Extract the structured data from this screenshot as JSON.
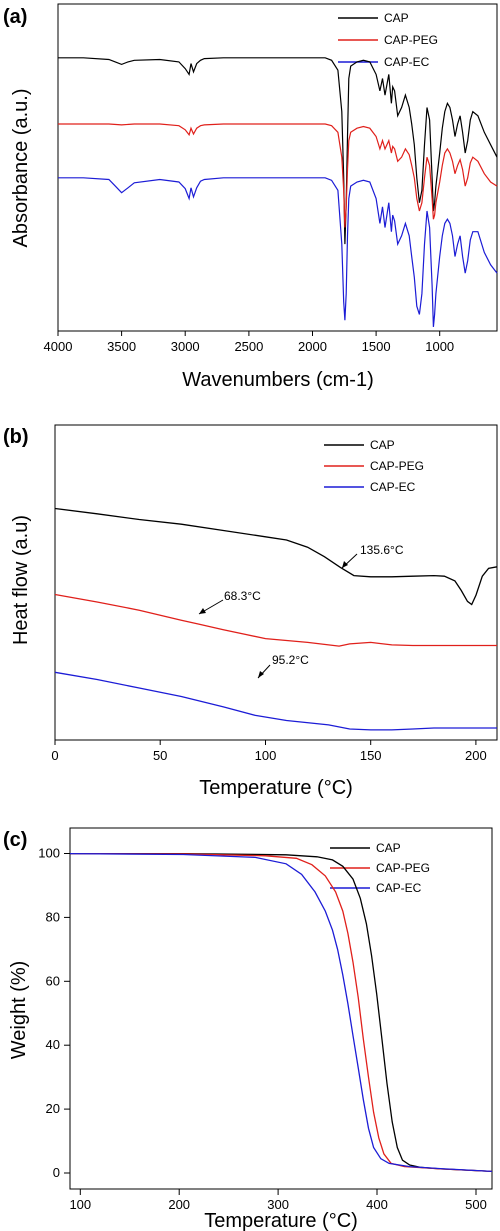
{
  "chart_data": [
    {
      "panel_label": "(a)",
      "type": "line",
      "xlabel": "Wavenumbers (cm-1)",
      "ylabel": "Absorbance (a.u.)",
      "xlim": [
        4000,
        550
      ],
      "xticks": [
        4000,
        3500,
        3000,
        2500,
        2000,
        1500,
        1000
      ],
      "ylim": [
        -0.75,
        3.2
      ],
      "y_ticks_shown": false,
      "grid": false,
      "legend_position": "top-right",
      "series": [
        {
          "name": "CAP",
          "color": "#000000",
          "x": [
            4000,
            3800,
            3600,
            3550,
            3500,
            3450,
            3400,
            3200,
            3050,
            3000,
            2970,
            2955,
            2935,
            2910,
            2880,
            2850,
            2700,
            2400,
            2100,
            1900,
            1850,
            1800,
            1770,
            1755,
            1745,
            1735,
            1725,
            1715,
            1700,
            1650,
            1600,
            1550,
            1500,
            1470,
            1450,
            1430,
            1400,
            1380,
            1370,
            1355,
            1330,
            1300,
            1270,
            1240,
            1220,
            1200,
            1180,
            1160,
            1140,
            1120,
            1100,
            1080,
            1060,
            1050,
            1040,
            1030,
            1000,
            980,
            960,
            940,
            920,
            900,
            880,
            860,
            840,
            820,
            800,
            780,
            760,
            740,
            700,
            650,
            600,
            550
          ],
          "y": [
            2.55,
            2.55,
            2.53,
            2.5,
            2.47,
            2.5,
            2.52,
            2.53,
            2.5,
            2.42,
            2.35,
            2.48,
            2.38,
            2.48,
            2.52,
            2.54,
            2.55,
            2.55,
            2.55,
            2.55,
            2.52,
            2.4,
            1.9,
            1.1,
            0.3,
            0.8,
            1.6,
            2.3,
            2.45,
            2.5,
            2.52,
            2.5,
            2.35,
            2.15,
            2.3,
            2.1,
            2.35,
            2.0,
            2.2,
            2.15,
            1.85,
            1.95,
            2.1,
            1.95,
            1.75,
            1.5,
            1.1,
            0.8,
            0.95,
            1.5,
            1.95,
            1.8,
            1.1,
            0.7,
            0.8,
            1.0,
            1.4,
            1.7,
            1.9,
            2.0,
            1.95,
            1.8,
            1.6,
            1.75,
            1.85,
            1.65,
            1.4,
            1.55,
            1.8,
            1.9,
            1.85,
            1.65,
            1.5,
            1.35
          ]
        },
        {
          "name": "CAP-PEG",
          "color": "#e0201b",
          "x": [
            4000,
            3800,
            3600,
            3500,
            3400,
            3200,
            3050,
            3000,
            2970,
            2955,
            2935,
            2910,
            2880,
            2850,
            2700,
            2400,
            2100,
            1900,
            1850,
            1800,
            1770,
            1755,
            1745,
            1735,
            1725,
            1715,
            1700,
            1650,
            1600,
            1550,
            1500,
            1470,
            1450,
            1430,
            1400,
            1380,
            1370,
            1355,
            1330,
            1300,
            1270,
            1240,
            1220,
            1200,
            1180,
            1160,
            1140,
            1120,
            1100,
            1080,
            1060,
            1050,
            1040,
            1030,
            1000,
            980,
            960,
            940,
            920,
            900,
            880,
            860,
            840,
            820,
            800,
            780,
            760,
            740,
            700,
            650,
            600,
            550
          ],
          "y": [
            1.75,
            1.75,
            1.75,
            1.74,
            1.75,
            1.75,
            1.73,
            1.68,
            1.62,
            1.7,
            1.63,
            1.7,
            1.73,
            1.74,
            1.75,
            1.75,
            1.75,
            1.75,
            1.73,
            1.65,
            1.35,
            0.95,
            0.5,
            0.75,
            1.2,
            1.55,
            1.65,
            1.7,
            1.72,
            1.7,
            1.6,
            1.45,
            1.55,
            1.45,
            1.55,
            1.4,
            1.48,
            1.45,
            1.3,
            1.35,
            1.45,
            1.38,
            1.25,
            1.1,
            0.85,
            0.7,
            0.8,
            1.1,
            1.35,
            1.25,
            0.85,
            0.6,
            0.65,
            0.8,
            1.05,
            1.25,
            1.4,
            1.45,
            1.4,
            1.3,
            1.15,
            1.25,
            1.32,
            1.2,
            1.0,
            1.1,
            1.28,
            1.35,
            1.3,
            1.15,
            1.05,
            1.0
          ]
        },
        {
          "name": "CAP-EC",
          "color": "#1c1cd6",
          "x": [
            4000,
            3800,
            3600,
            3550,
            3500,
            3450,
            3400,
            3200,
            3050,
            3000,
            2970,
            2955,
            2935,
            2910,
            2880,
            2850,
            2700,
            2400,
            2100,
            1900,
            1850,
            1800,
            1770,
            1755,
            1745,
            1735,
            1725,
            1715,
            1700,
            1650,
            1600,
            1550,
            1500,
            1470,
            1450,
            1430,
            1400,
            1380,
            1370,
            1355,
            1330,
            1300,
            1270,
            1240,
            1220,
            1200,
            1180,
            1160,
            1140,
            1120,
            1100,
            1080,
            1060,
            1050,
            1040,
            1030,
            1000,
            980,
            960,
            940,
            920,
            900,
            880,
            860,
            840,
            820,
            800,
            780,
            760,
            740,
            700,
            650,
            600,
            550
          ],
          "y": [
            1.1,
            1.1,
            1.08,
            1.0,
            0.92,
            0.98,
            1.04,
            1.08,
            1.05,
            0.97,
            0.85,
            0.98,
            0.87,
            0.98,
            1.06,
            1.08,
            1.1,
            1.1,
            1.1,
            1.1,
            1.07,
            0.95,
            0.3,
            -0.4,
            -0.62,
            -0.3,
            0.4,
            0.85,
            1.0,
            1.05,
            1.07,
            1.05,
            0.85,
            0.55,
            0.75,
            0.5,
            0.8,
            0.45,
            0.65,
            0.58,
            0.3,
            0.4,
            0.55,
            0.4,
            0.15,
            -0.1,
            -0.45,
            -0.55,
            -0.3,
            0.3,
            0.7,
            0.5,
            -0.2,
            -0.7,
            -0.55,
            -0.3,
            0.15,
            0.4,
            0.55,
            0.6,
            0.55,
            0.4,
            0.15,
            0.3,
            0.4,
            0.15,
            -0.05,
            0.1,
            0.35,
            0.45,
            0.45,
            0.2,
            0.05,
            -0.05
          ]
        }
      ]
    },
    {
      "panel_label": "(b)",
      "type": "line",
      "xlabel": "Temperature (°C)",
      "ylabel": "Heat flow (a.u)",
      "xlim": [
        0,
        210
      ],
      "xticks": [
        0,
        50,
        100,
        150,
        200
      ],
      "ylim": [
        0,
        10
      ],
      "y_ticks_shown": false,
      "grid": false,
      "legend_position": "top-right",
      "annotations": [
        {
          "text": "135.6°C",
          "x": 135.6,
          "series": "CAP"
        },
        {
          "text": "68.3°C",
          "x": 68.3,
          "series": "CAP-PEG"
        },
        {
          "text": "95.2°C",
          "x": 95.2,
          "series": "CAP-EC"
        }
      ],
      "series": [
        {
          "name": "CAP",
          "color": "#000000",
          "x": [
            0,
            20,
            40,
            60,
            80,
            100,
            110,
            120,
            128,
            135.6,
            142,
            150,
            160,
            170,
            180,
            185,
            190,
            193,
            196,
            198,
            200,
            203,
            206,
            210
          ],
          "y": [
            7.35,
            7.18,
            7.0,
            6.85,
            6.65,
            6.45,
            6.35,
            6.12,
            5.82,
            5.48,
            5.22,
            5.18,
            5.18,
            5.2,
            5.22,
            5.2,
            5.05,
            4.75,
            4.4,
            4.3,
            4.6,
            5.2,
            5.45,
            5.5
          ]
        },
        {
          "name": "CAP-PEG",
          "color": "#e0201b",
          "x": [
            0,
            20,
            40,
            60,
            68.3,
            80,
            100,
            120,
            130,
            135,
            140,
            150,
            160,
            170,
            180,
            190,
            200,
            210
          ],
          "y": [
            4.62,
            4.38,
            4.12,
            3.8,
            3.68,
            3.5,
            3.22,
            3.1,
            3.02,
            2.98,
            3.05,
            3.1,
            3.02,
            3.0,
            3.0,
            3.0,
            3.0,
            3.0
          ]
        },
        {
          "name": "CAP-EC",
          "color": "#1c1cd6",
          "x": [
            0,
            20,
            40,
            60,
            80,
            95.2,
            110,
            130,
            140,
            150,
            160,
            170,
            180,
            190,
            200,
            210
          ],
          "y": [
            2.15,
            1.92,
            1.65,
            1.38,
            1.05,
            0.78,
            0.62,
            0.48,
            0.35,
            0.32,
            0.32,
            0.35,
            0.38,
            0.38,
            0.38,
            0.38
          ]
        }
      ]
    },
    {
      "panel_label": "(c)",
      "type": "line",
      "xlabel": "Temperature (°C)",
      "ylabel": "Weight (%)",
      "xlim": [
        90,
        500
      ],
      "xticks": [
        100,
        200,
        300,
        400,
        500
      ],
      "ylim": [
        -5,
        108
      ],
      "yticks": [
        0,
        20,
        40,
        60,
        80,
        100
      ],
      "grid": false,
      "legend_position": "top-right",
      "series": [
        {
          "name": "CAP",
          "color": "#000000",
          "x": [
            90,
            200,
            300,
            330,
            345,
            355,
            365,
            372,
            378,
            383,
            388,
            393,
            398,
            403,
            408,
            413,
            420,
            430,
            450,
            500
          ],
          "y": [
            100,
            100,
            99.6,
            99,
            98,
            96,
            92,
            86,
            78,
            68,
            56,
            42,
            28,
            16,
            8,
            4,
            2.5,
            1.8,
            1.3,
            0.5
          ]
        },
        {
          "name": "CAP-PEG",
          "color": "#e0201b",
          "x": [
            90,
            200,
            280,
            310,
            325,
            338,
            348,
            355,
            360,
            365,
            370,
            375,
            380,
            385,
            390,
            395,
            402,
            415,
            450,
            500
          ],
          "y": [
            100,
            99.9,
            99.3,
            98.5,
            96.5,
            93,
            88,
            82,
            75,
            66,
            55,
            42,
            30,
            19,
            11,
            6,
            3,
            2,
            1.3,
            0.5
          ]
        },
        {
          "name": "CAP-EC",
          "color": "#1c1cd6",
          "x": [
            90,
            200,
            270,
            300,
            315,
            328,
            338,
            345,
            350,
            355,
            360,
            365,
            370,
            375,
            380,
            385,
            392,
            400,
            420,
            450,
            500
          ],
          "y": [
            100,
            99.7,
            98.8,
            96.8,
            93.5,
            88,
            82,
            76,
            70,
            62,
            53,
            43,
            33,
            23,
            14,
            8,
            4.5,
            3,
            2,
            1.4,
            0.5
          ]
        }
      ]
    }
  ]
}
